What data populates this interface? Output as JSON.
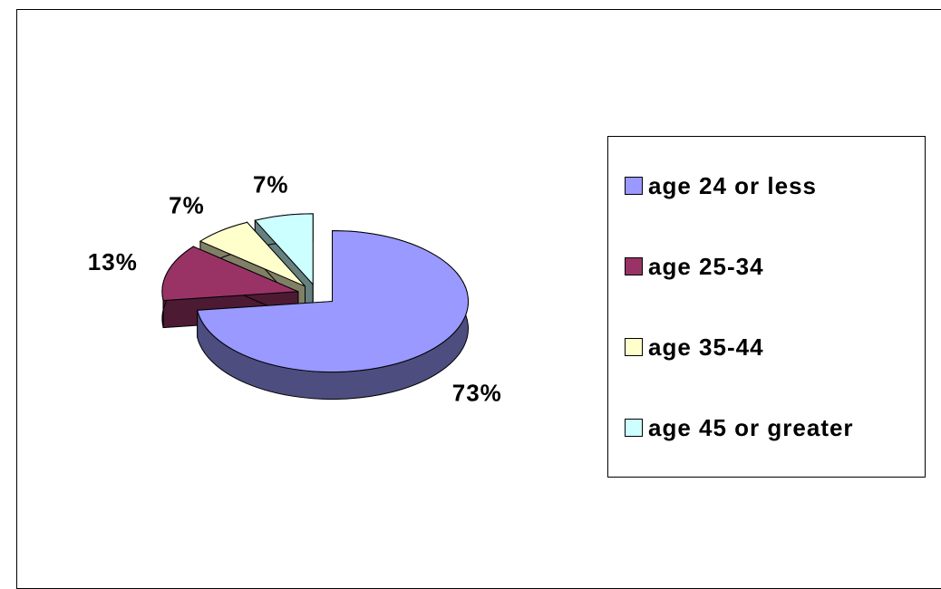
{
  "chart_data": {
    "type": "pie",
    "categories": [
      "age 24 or less",
      "age 25-34",
      "age 35-44",
      "age 45 or greater"
    ],
    "values": [
      73,
      13,
      7,
      7
    ],
    "value_labels": [
      "73%",
      "13%",
      "7%",
      "7%"
    ],
    "colors": [
      "#9999ff",
      "#993366",
      "#ffffcc",
      "#ccffff"
    ],
    "legend": "right"
  }
}
